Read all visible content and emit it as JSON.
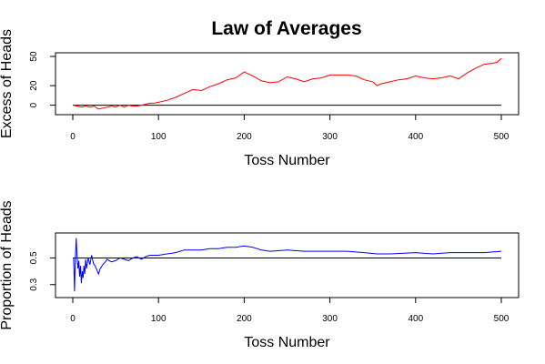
{
  "chart_data": [
    {
      "type": "line",
      "title": "Law of Averages",
      "xlabel": "Toss Number",
      "ylabel": "Excess of Heads",
      "xlim": [
        0,
        500
      ],
      "ylim": [
        -6,
        50
      ],
      "x_ticks": [
        0,
        100,
        200,
        300,
        400,
        500
      ],
      "y_ticks": [
        0,
        20,
        50
      ],
      "reference_line": 0,
      "grid": false,
      "series": [
        {
          "color": "#ff0000",
          "points": [
            [
              1,
              0
            ],
            [
              5,
              -1
            ],
            [
              10,
              -2
            ],
            [
              15,
              -1
            ],
            [
              20,
              -2
            ],
            [
              25,
              -1
            ],
            [
              30,
              -4
            ],
            [
              35,
              -3
            ],
            [
              40,
              -2
            ],
            [
              45,
              -1
            ],
            [
              50,
              -2
            ],
            [
              55,
              0
            ],
            [
              60,
              -2
            ],
            [
              65,
              0
            ],
            [
              70,
              -1
            ],
            [
              75,
              -1
            ],
            [
              80,
              0
            ],
            [
              85,
              1
            ],
            [
              90,
              2
            ],
            [
              95,
              2
            ],
            [
              100,
              3
            ],
            [
              110,
              5
            ],
            [
              120,
              8
            ],
            [
              130,
              12
            ],
            [
              140,
              16
            ],
            [
              150,
              15
            ],
            [
              160,
              19
            ],
            [
              170,
              22
            ],
            [
              180,
              26
            ],
            [
              190,
              28
            ],
            [
              200,
              34
            ],
            [
              205,
              32
            ],
            [
              210,
              30
            ],
            [
              220,
              25
            ],
            [
              230,
              23
            ],
            [
              240,
              24
            ],
            [
              250,
              29
            ],
            [
              260,
              27
            ],
            [
              270,
              24
            ],
            [
              280,
              27
            ],
            [
              290,
              28
            ],
            [
              300,
              31
            ],
            [
              310,
              31
            ],
            [
              320,
              31
            ],
            [
              330,
              30
            ],
            [
              340,
              26
            ],
            [
              350,
              24
            ],
            [
              355,
              20
            ],
            [
              360,
              22
            ],
            [
              370,
              24
            ],
            [
              380,
              26
            ],
            [
              390,
              27
            ],
            [
              400,
              30
            ],
            [
              410,
              28
            ],
            [
              420,
              27
            ],
            [
              430,
              28
            ],
            [
              440,
              30
            ],
            [
              450,
              27
            ],
            [
              460,
              33
            ],
            [
              470,
              38
            ],
            [
              480,
              42
            ],
            [
              490,
              43
            ],
            [
              495,
              44
            ],
            [
              500,
              48
            ]
          ]
        }
      ]
    },
    {
      "type": "line",
      "title": "",
      "xlabel": "Toss Number",
      "ylabel": "Proportion of Heads",
      "xlim": [
        0,
        500
      ],
      "ylim": [
        0.23,
        0.66
      ],
      "x_ticks": [
        0,
        100,
        200,
        300,
        400,
        500
      ],
      "y_ticks": [
        0.3,
        0.5
      ],
      "reference_line": 0.5,
      "grid": false,
      "series": [
        {
          "color": "#0000ff",
          "points": [
            [
              1,
              0.5
            ],
            [
              2,
              0.25
            ],
            [
              3,
              0.5
            ],
            [
              4,
              0.65
            ],
            [
              5,
              0.5
            ],
            [
              6,
              0.42
            ],
            [
              7,
              0.48
            ],
            [
              8,
              0.36
            ],
            [
              9,
              0.44
            ],
            [
              10,
              0.31
            ],
            [
              11,
              0.4
            ],
            [
              12,
              0.35
            ],
            [
              13,
              0.44
            ],
            [
              14,
              0.38
            ],
            [
              15,
              0.49
            ],
            [
              16,
              0.42
            ],
            [
              18,
              0.5
            ],
            [
              20,
              0.45
            ],
            [
              22,
              0.52
            ],
            [
              24,
              0.46
            ],
            [
              26,
              0.44
            ],
            [
              28,
              0.41
            ],
            [
              30,
              0.38
            ],
            [
              32,
              0.42
            ],
            [
              35,
              0.45
            ],
            [
              38,
              0.47
            ],
            [
              40,
              0.49
            ],
            [
              45,
              0.47
            ],
            [
              50,
              0.48
            ],
            [
              55,
              0.5
            ],
            [
              60,
              0.49
            ],
            [
              65,
              0.48
            ],
            [
              70,
              0.5
            ],
            [
              75,
              0.51
            ],
            [
              80,
              0.49
            ],
            [
              85,
              0.51
            ],
            [
              90,
              0.52
            ],
            [
              100,
              0.52
            ],
            [
              110,
              0.53
            ],
            [
              120,
              0.54
            ],
            [
              130,
              0.56
            ],
            [
              140,
              0.56
            ],
            [
              150,
              0.56
            ],
            [
              160,
              0.57
            ],
            [
              170,
              0.57
            ],
            [
              180,
              0.58
            ],
            [
              190,
              0.58
            ],
            [
              200,
              0.59
            ],
            [
              210,
              0.58
            ],
            [
              220,
              0.56
            ],
            [
              230,
              0.55
            ],
            [
              250,
              0.56
            ],
            [
              270,
              0.55
            ],
            [
              300,
              0.55
            ],
            [
              320,
              0.55
            ],
            [
              340,
              0.54
            ],
            [
              355,
              0.53
            ],
            [
              370,
              0.53
            ],
            [
              400,
              0.54
            ],
            [
              420,
              0.53
            ],
            [
              440,
              0.54
            ],
            [
              460,
              0.54
            ],
            [
              480,
              0.54
            ],
            [
              500,
              0.55
            ]
          ]
        }
      ]
    }
  ]
}
